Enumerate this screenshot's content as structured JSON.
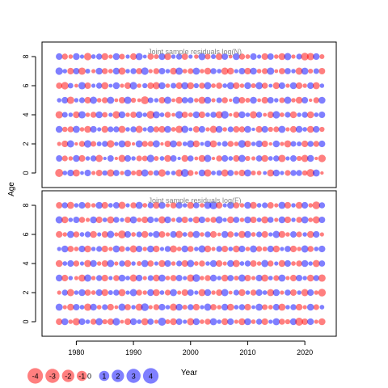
{
  "colors": {
    "positive": "#0000ff",
    "negative": "#ff0000",
    "bubble_opacity": 0.5,
    "panel_title": "#888888",
    "axis": "#000000"
  },
  "chart_data": [
    {
      "type": "scatter",
      "title": "Joint sample residuals log(N)",
      "xlabel": "Year",
      "ylabel": "Age",
      "xlim": [
        1974,
        2025.5
      ],
      "ylim": [
        -1,
        9
      ],
      "x_range": [
        1977,
        2023
      ],
      "ages": [
        0,
        1,
        2,
        3,
        4,
        5,
        6,
        7,
        8
      ],
      "yticks": [
        0,
        2,
        4,
        6,
        8
      ],
      "residuals": [
        [
          -2.9,
          0.6,
          1.8,
          -2.1,
          0.3,
          1.7,
          -0.4,
          -1.6,
          0.9,
          -2.3,
          1.5,
          -0.4,
          2.0,
          -0.7,
          -1.7,
          2.2,
          -0.8,
          1.1,
          -2.4,
          0.6,
          0.6,
          -2.2,
          2.8,
          -1.3,
          -0.2,
          1.9,
          -2.3,
          0.6,
          1.1,
          -2.2,
          1.5,
          -0.5,
          -1.7,
          2.1,
          -0.7,
          -0.6,
          0.3,
          -2.1,
          2.0,
          0.4,
          -1.2,
          1.3,
          1.3,
          -0.9,
          -2.8,
          2.1,
          -0.2
        ],
        [
          1.6,
          -1.2,
          -0.5,
          2.0,
          -1.7,
          0.5,
          1.4,
          -2.2,
          0.2,
          1.6,
          -0.2,
          -2.2,
          1.7,
          0.5,
          -1.2,
          -1.1,
          2.4,
          -0.7,
          0.6,
          -2.0,
          1.6,
          0.2,
          -1.9,
          1.4,
          -0.3,
          -2.0,
          2.2,
          -0.2,
          -1.4,
          1.7,
          0.6,
          -1.7,
          2.2,
          -0.8,
          -0.4,
          1.5,
          -2.0,
          0.6,
          1.4,
          -2.3,
          0.4,
          1.6,
          -0.8,
          -2.2,
          1.9,
          -0.2,
          -2.5
        ],
        [
          -0.4,
          -1.8,
          2.2,
          -0.2,
          -1.3,
          2.4,
          -1.1,
          0.7,
          1.3,
          -2.5,
          0.4,
          2.1,
          -1.6,
          -0.2,
          2.1,
          -1.3,
          -1.2,
          2.2,
          -0.2,
          -1.6,
          2.1,
          -1.0,
          0.6,
          2.3,
          -1.9,
          0.3,
          1.8,
          -2.1,
          0.4,
          1.2,
          -1.4,
          -0.6,
          2.6,
          -1.8,
          0.5,
          1.9,
          -1.6,
          -0.2,
          2.0,
          -0.4,
          -2.1,
          1.1,
          0.7,
          -1.8,
          1.4,
          -1.3,
          1.7
        ],
        [
          2.0,
          -0.9,
          -1.4,
          2.1,
          -0.5,
          -2.0,
          1.8,
          0.4,
          -1.9,
          1.2,
          1.3,
          -2.1,
          0.5,
          1.4,
          -2.2,
          0.4,
          1.8,
          -1.3,
          -1.8,
          2.0,
          -0.6,
          -2.3,
          2.2,
          0.3,
          -1.6,
          1.7,
          -0.4,
          -2.2,
          2.0,
          -0.5,
          1.2,
          -1.6,
          -1.3,
          2.0,
          0.2,
          -1.8,
          1.8,
          -0.8,
          -1.2,
          2.1,
          -0.4,
          -1.7,
          1.9,
          0.6,
          -2.0,
          1.8,
          -0.8
        ],
        [
          -2.3,
          1.1,
          0.5,
          -1.9,
          2.3,
          -0.5,
          -1.4,
          2.0,
          -1.0,
          0.4,
          -2.4,
          1.9,
          -0.5,
          -1.5,
          1.8,
          0.5,
          -2.8,
          2.1,
          0.6,
          -1.4,
          -0.3,
          2.5,
          -1.5,
          -0.6,
          2.0,
          -1.7,
          0.6,
          1.4,
          -2.1,
          2.6,
          -0.2,
          -1.5,
          1.9,
          0.5,
          -2.2,
          1.3,
          -0.3,
          -1.7,
          2.4,
          -0.6,
          1.2,
          -1.9,
          0.5,
          1.3,
          -2.0,
          0.6,
          1.6
        ],
        [
          0.5,
          1.7,
          -2.3,
          0.5,
          1.2,
          -1.7,
          2.2,
          -0.6,
          -1.4,
          2.1,
          -0.3,
          -1.6,
          2.3,
          -0.8,
          -0.3,
          -2.8,
          1.1,
          0.5,
          -1.6,
          2.2,
          -0.3,
          -1.9,
          1.5,
          1.3,
          -0.5,
          -2.1,
          2.0,
          -0.4,
          1.1,
          -1.4,
          -0.2,
          2.3,
          -1.6,
          -0.7,
          2.0,
          -0.3,
          -1.8,
          1.6,
          0.5,
          -1.1,
          2.2,
          -0.5,
          -1.9,
          1.6,
          -0.2,
          -1.3,
          2.0
        ],
        [
          -1.5,
          -2.4,
          1.0,
          -0.3,
          2.3,
          -1.6,
          0.4,
          1.3,
          -2.1,
          0.3,
          2.0,
          -0.4,
          -1.7,
          2.4,
          -0.5,
          0.8,
          -1.6,
          -2.2,
          2.0,
          -0.5,
          1.1,
          -1.7,
          2.1,
          -2.0,
          0.8,
          -1.3,
          2.2,
          -0.6,
          -1.5,
          0.6,
          2.1,
          -1.8,
          -0.5,
          1.9,
          -0.7,
          2.2,
          -1.4,
          0.3,
          -1.9,
          1.7,
          -0.4,
          2.0,
          -1.7,
          -0.5,
          1.8,
          -2.1,
          0.5
        ],
        [
          2.4,
          0.5,
          -1.7,
          1.6,
          -2.3,
          0.7,
          -0.4,
          2.0,
          -1.3,
          -0.6,
          1.9,
          -2.2,
          0.5,
          1.3,
          -1.5,
          2.4,
          -0.4,
          -1.4,
          1.6,
          0.5,
          -2.0,
          2.3,
          -0.6,
          -1.2,
          2.1,
          -0.5,
          -1.9,
          1.4,
          0.6,
          -2.2,
          -1.9,
          0.4,
          1.6,
          -1.8,
          2.0,
          -0.6,
          -1.3,
          2.3,
          -0.3,
          -1.5,
          1.5,
          0.5,
          -2.2,
          2.1,
          -0.7,
          1.1,
          -1.6
        ],
        [
          1.8,
          -1.3,
          -0.5,
          1.9,
          0.4,
          -2.4,
          0.6,
          1.3,
          -1.9,
          -0.4,
          2.0,
          -1.1,
          0.4,
          -1.7,
          2.1,
          0.3,
          -1.5,
          -0.7,
          1.9,
          -2.0,
          0.5,
          1.3,
          -1.6,
          0.4,
          -0.5,
          2.2,
          -1.2,
          0.7,
          -1.9,
          1.6,
          -0.3,
          2.0,
          -1.4,
          -0.6,
          1.7,
          0.4,
          -1.8,
          1.6,
          -0.5,
          -2.0,
          2.2,
          -0.4,
          1.2,
          -2.6,
          -2.3,
          1.8,
          -0.7
        ]
      ]
    },
    {
      "type": "scatter",
      "title": "Joint sample residuals log(F)",
      "xlabel": "Year",
      "ylabel": "Age",
      "xlim": [
        1974,
        2025.5
      ],
      "ylim": [
        -1,
        9
      ],
      "x_range": [
        1977,
        2023
      ],
      "ages": [
        0,
        1,
        2,
        3,
        4,
        5,
        6,
        7,
        8
      ],
      "yticks": [
        0,
        2,
        4,
        6,
        8
      ],
      "xticks": [
        1980,
        1990,
        2000,
        2010,
        2020
      ],
      "residuals": [
        [
          -1.7,
          2.0,
          -0.5,
          -2.3,
          1.8,
          0.5,
          -1.4,
          2.2,
          -0.8,
          -1.6,
          2.4,
          -0.3,
          -1.8,
          1.9,
          0.6,
          -2.1,
          1.5,
          -0.4,
          2.9,
          -0.7,
          -1.9,
          1.6,
          0.4,
          -2.2,
          1.9,
          -0.6,
          -1.3,
          2.1,
          0.5,
          -1.9,
          1.7,
          -0.4,
          -2.0,
          2.0,
          -0.6,
          1.3,
          -1.8,
          0.4,
          2.1,
          -1.4,
          -0.8,
          1.9,
          -2.9,
          -1.6,
          1.8,
          -0.4,
          -2.0
        ],
        [
          2.1,
          -0.4,
          -1.9,
          1.6,
          0.6,
          -2.3,
          1.9,
          -0.6,
          1.2,
          -1.7,
          -0.3,
          2.2,
          -1.5,
          0.5,
          -2.1,
          2.7,
          -0.4,
          -1.3,
          1.8,
          0.5,
          -2.2,
          2.0,
          -0.7,
          1.3,
          -1.8,
          0.4,
          2.2,
          -1.5,
          -0.5,
          1.9,
          -2.0,
          0.6,
          1.4,
          -1.7,
          0.3,
          2.1,
          -1.1,
          -0.6,
          1.7,
          -2.1,
          0.5,
          1.3,
          -1.8,
          -0.4,
          2.0,
          -1.2,
          0.6
        ],
        [
          -0.4,
          1.3,
          -2.2,
          0.5,
          2.0,
          -1.5,
          -0.6,
          1.8,
          -1.9,
          0.7,
          1.4,
          -2.1,
          0.4,
          2.2,
          -1.3,
          -0.5,
          1.9,
          -2.0,
          0.6,
          -1.2,
          2.1,
          -0.4,
          -1.8,
          1.6,
          0.4,
          -2.1,
          1.9,
          -0.5,
          -1.6,
          2.2,
          -0.3,
          1.2,
          -1.9,
          0.5,
          -1.4,
          1.8,
          0.6,
          -2.1,
          2.0,
          -0.4,
          1.4,
          -1.6,
          0.5,
          -2.2,
          1.7,
          -0.5,
          -2.6
        ],
        [
          1.9,
          -1.7,
          0.5,
          -0.4,
          -2.1,
          2.2,
          -0.5,
          1.3,
          -1.8,
          0.4,
          -1.4,
          2.0,
          0.6,
          -2.2,
          1.8,
          -0.4,
          1.2,
          -1.9,
          2.1,
          -0.6,
          -1.5,
          1.6,
          0.4,
          -2.3,
          2.6,
          -0.5,
          -1.3,
          1.9,
          0.5,
          -2.0,
          1.5,
          -0.7,
          2.2,
          -1.6,
          -0.4,
          1.8,
          -2.1,
          0.6,
          -1.2,
          2.1,
          -0.4,
          -1.7,
          1.6,
          0.5,
          -2.0,
          1.3,
          -2.3
        ],
        [
          -2.0,
          0.6,
          1.7,
          -1.3,
          0.4,
          -2.1,
          1.9,
          -0.5,
          -1.6,
          2.2,
          -0.4,
          1.3,
          -1.9,
          0.5,
          -0.7,
          2.1,
          -1.5,
          0.4,
          -2.0,
          1.8,
          -0.5,
          1.2,
          -1.8,
          2.2,
          -0.6,
          -1.4,
          0.5,
          2.0,
          -1.7,
          -0.4,
          1.9,
          -2.1,
          0.6,
          1.3,
          -1.6,
          -0.5,
          2.2,
          -1.3,
          0.4,
          -1.9,
          1.7,
          -0.6,
          -1.4,
          2.0,
          0.5,
          -2.1,
          1.5
        ],
        [
          0.4,
          2.0,
          -1.5,
          -0.6,
          1.8,
          -2.0,
          0.5,
          1.2,
          -1.7,
          -0.4,
          2.1,
          -1.3,
          0.6,
          -2.2,
          1.6,
          -0.5,
          2.0,
          -1.8,
          0.4,
          1.4,
          -2.1,
          -0.6,
          1.9,
          -1.4,
          0.5,
          2.2,
          -1.9,
          -0.4,
          1.3,
          -1.6,
          0.6,
          -2.0,
          1.8,
          -0.5,
          2.1,
          -1.2,
          -0.7,
          1.7,
          -2.0,
          0.4,
          1.5,
          -1.8,
          -0.5,
          2.2,
          -1.4,
          0.6,
          1.8
        ],
        [
          -1.8,
          -0.5,
          2.1,
          -1.4,
          0.6,
          1.3,
          -2.0,
          0.4,
          -1.6,
          2.2,
          -0.4,
          -2.8,
          1.7,
          -0.6,
          1.2,
          -1.9,
          0.5,
          2.0,
          -1.6,
          -0.4,
          1.8,
          -2.2,
          0.6,
          -1.3,
          2.1,
          -0.5,
          1.4,
          -1.8,
          -0.3,
          2.0,
          -1.5,
          0.5,
          -2.1,
          1.9,
          -0.6,
          1.2,
          -1.7,
          0.4,
          2.2,
          -1.9,
          -0.5,
          1.6,
          -1.2,
          0.5,
          -2.0,
          1.8,
          -0.4
        ],
        [
          2.2,
          -1.9,
          0.5,
          1.6,
          -1.4,
          -0.4,
          2.0,
          -1.7,
          0.6,
          -2.1,
          1.3,
          0.4,
          -1.5,
          2.1,
          -0.6,
          -1.8,
          1.7,
          0.5,
          -2.2,
          1.9,
          -0.4,
          1.4,
          -1.6,
          0.5,
          -2.0,
          1.8,
          -0.7,
          -1.3,
          2.2,
          0.4,
          -1.9,
          1.5,
          -0.5,
          2.0,
          -1.6,
          0.6,
          -2.1,
          1.4,
          -0.4,
          1.9,
          -1.8,
          0.5,
          -1.3,
          2.1,
          -0.6,
          -2.2,
          1.6
        ],
        [
          -1.6,
          1.4,
          -2.1,
          0.5,
          1.8,
          -1.3,
          -0.5,
          2.0,
          -1.8,
          0.6,
          1.6,
          -2.2,
          0.4,
          -1.4,
          2.1,
          -0.6,
          1.3,
          -1.9,
          2.0,
          -0.4,
          -1.5,
          1.8,
          0.5,
          -2.0,
          1.4,
          -0.6,
          2.2,
          2.8,
          -1.7,
          0.4,
          1.9,
          -1.5,
          -0.5,
          2.0,
          -1.9,
          0.6,
          1.2,
          -1.6,
          -0.4,
          2.1,
          -1.8,
          0.5,
          -2.0,
          1.7,
          -0.5,
          -2.7,
          1.4
        ]
      ]
    }
  ],
  "legend": {
    "values": [
      -4,
      -3,
      -2,
      -1,
      0,
      1,
      2,
      3,
      4
    ],
    "labels": [
      "-4",
      "-3",
      "-2",
      "-1",
      "0",
      "1",
      "2",
      "3",
      "4"
    ]
  },
  "axis_labels": {
    "x": "Year",
    "y": "Age"
  }
}
